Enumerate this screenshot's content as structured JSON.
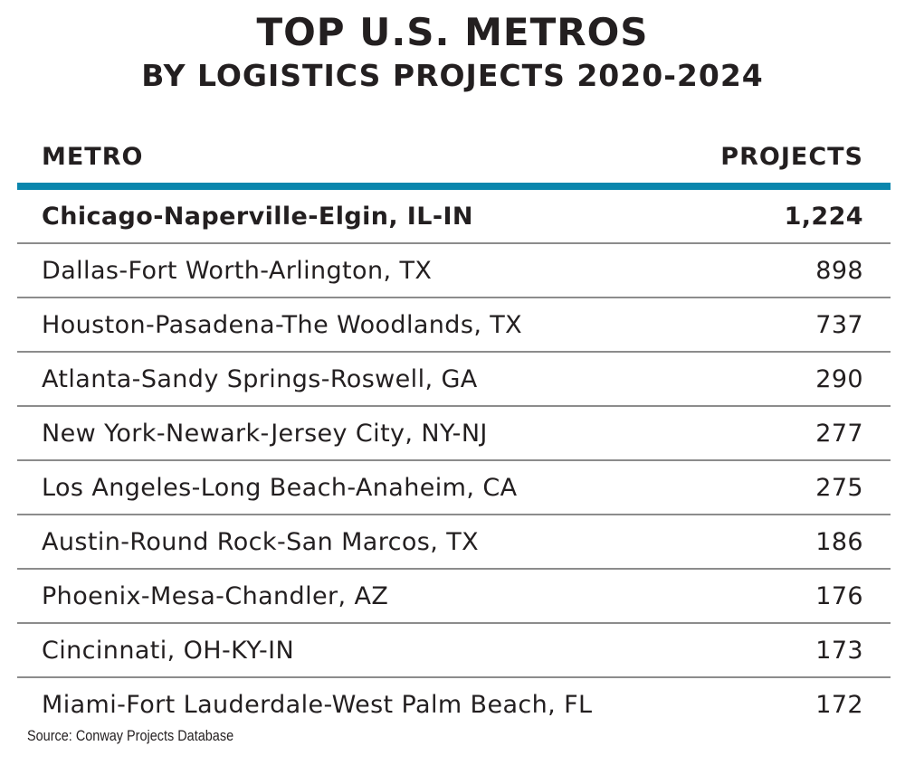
{
  "header": {
    "title": "TOP U.S. METROS",
    "subtitle": "BY LOGISTICS PROJECTS 2020-2024"
  },
  "table": {
    "columns": [
      "METRO",
      "PROJECTS"
    ],
    "accent_color": "#0a86ad",
    "rows": [
      {
        "metro": "Chicago-Naperville-Elgin, IL-IN",
        "projects": "1,224"
      },
      {
        "metro": "Dallas-Fort Worth-Arlington, TX",
        "projects": "898"
      },
      {
        "metro": "Houston-Pasadena-The Woodlands, TX",
        "projects": "737"
      },
      {
        "metro": "Atlanta-Sandy Springs-Roswell, GA",
        "projects": "290"
      },
      {
        "metro": "New York-Newark-Jersey City, NY-NJ",
        "projects": "277"
      },
      {
        "metro": "Los Angeles-Long Beach-Anaheim, CA",
        "projects": "275"
      },
      {
        "metro": "Austin-Round Rock-San Marcos, TX",
        "projects": "186"
      },
      {
        "metro": "Phoenix-Mesa-Chandler, AZ",
        "projects": "176"
      },
      {
        "metro": "Cincinnati, OH-KY-IN",
        "projects": "173"
      },
      {
        "metro": "Miami-Fort Lauderdale-West Palm Beach, FL",
        "projects": "172"
      }
    ]
  },
  "source": "Source: Conway Projects Database",
  "chart_data": {
    "type": "table",
    "title": "TOP U.S. METROS",
    "subtitle": "BY LOGISTICS PROJECTS 2020-2024",
    "columns": [
      "METRO",
      "PROJECTS"
    ],
    "categories": [
      "Chicago-Naperville-Elgin, IL-IN",
      "Dallas-Fort Worth-Arlington, TX",
      "Houston-Pasadena-The Woodlands, TX",
      "Atlanta-Sandy Springs-Roswell, GA",
      "New York-Newark-Jersey City, NY-NJ",
      "Los Angeles-Long Beach-Anaheim, CA",
      "Austin-Round Rock-San Marcos, TX",
      "Phoenix-Mesa-Chandler, AZ",
      "Cincinnati, OH-KY-IN",
      "Miami-Fort Lauderdale-West Palm Beach, FL"
    ],
    "values": [
      1224,
      898,
      737,
      290,
      277,
      275,
      186,
      176,
      173,
      172
    ]
  }
}
